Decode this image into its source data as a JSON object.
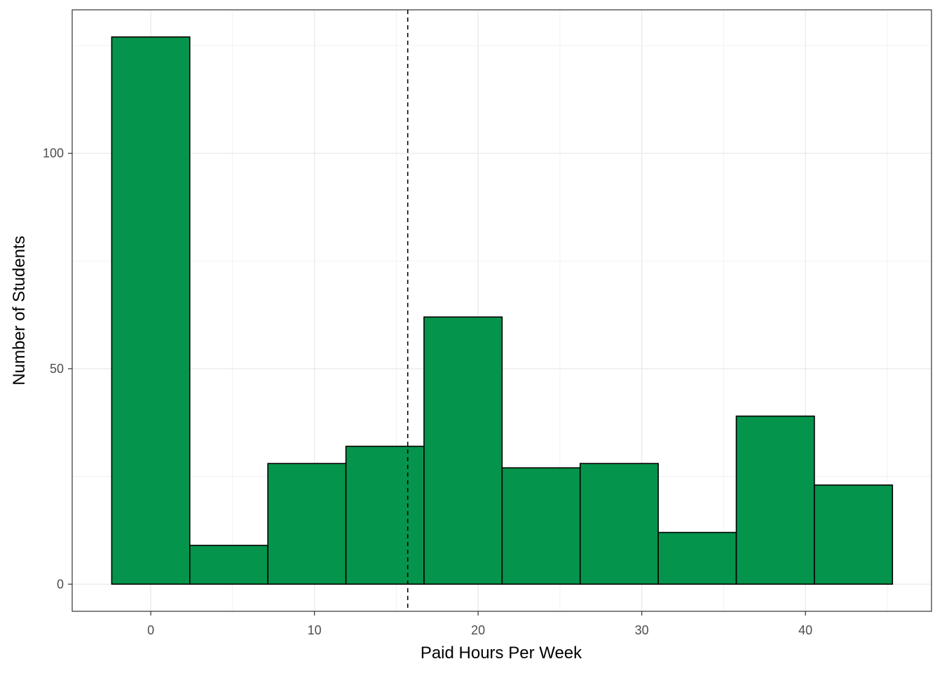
{
  "chart_data": {
    "type": "bar",
    "subtype": "histogram",
    "title": "",
    "xlabel": "Paid Hours Per Week",
    "ylabel": "Number of Students",
    "xlim": [
      -4.8,
      47.7
    ],
    "ylim": [
      -6.3,
      133.3
    ],
    "x_ticks": [
      0,
      10,
      20,
      30,
      40
    ],
    "y_ticks": [
      0,
      50,
      100
    ],
    "bin_width": 4.77,
    "bins": [
      {
        "start": -2.385,
        "end": 2.385,
        "count": 127
      },
      {
        "start": 2.385,
        "end": 7.155,
        "count": 9
      },
      {
        "start": 7.155,
        "end": 11.925,
        "count": 28
      },
      {
        "start": 11.925,
        "end": 16.695,
        "count": 32
      },
      {
        "start": 16.695,
        "end": 21.465,
        "count": 62
      },
      {
        "start": 21.465,
        "end": 26.235,
        "count": 27
      },
      {
        "start": 26.235,
        "end": 31.005,
        "count": 28
      },
      {
        "start": 31.005,
        "end": 35.775,
        "count": 12
      },
      {
        "start": 35.775,
        "end": 40.545,
        "count": 39
      },
      {
        "start": 40.545,
        "end": 45.315,
        "count": 23
      }
    ],
    "reference_line": {
      "x": 15.7,
      "style": "dashed",
      "color": "#000000"
    },
    "bar_fill": "#04944C",
    "bar_stroke": "#000000",
    "grid": true,
    "grid_color": "#EBEBEB",
    "legend": "none"
  }
}
